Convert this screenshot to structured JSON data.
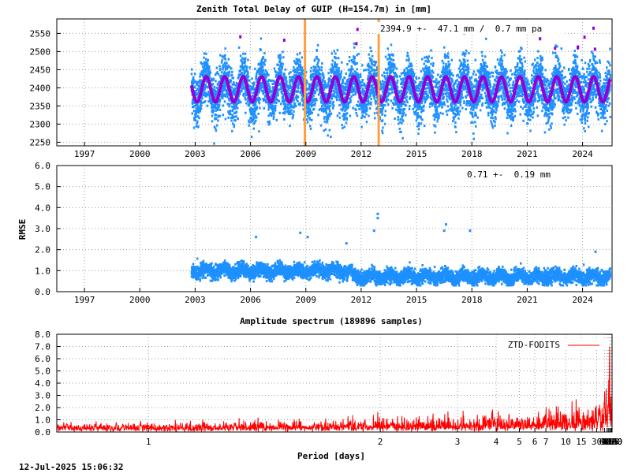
{
  "chart_data": [
    {
      "type": "scatter",
      "title": "Zenith Total Delay of GUIP (H=154.7m) in [mm]",
      "annotation": "2394.9 +-  47.1 mm /  0.7 mm pa",
      "xlim": [
        1995.5,
        2025.6
      ],
      "ylim": [
        2240,
        2590
      ],
      "x_ticks": [
        1997,
        2000,
        2003,
        2006,
        2009,
        2012,
        2015,
        2018,
        2021,
        2024
      ],
      "y_ticks": [
        2250,
        2300,
        2350,
        2400,
        2450,
        2500,
        2550
      ],
      "data_start": 2002.8,
      "data_end": 2025.5,
      "mean": 2394.9,
      "amplitude": 47.1,
      "trend_per_year": 0.7,
      "seasonal_fit_amplitude": 35,
      "vertical_markers": [
        2008.95,
        2012.95
      ],
      "colors": {
        "points": "#1e90ff",
        "fit": "#9400d3",
        "markers": "#ffa040"
      }
    },
    {
      "type": "scatter",
      "ylabel": "RMSE",
      "annotation": "0.71 +-  0.19 mm",
      "xlim": [
        1995.5,
        2025.6
      ],
      "ylim": [
        0,
        6
      ],
      "x_ticks": [
        1997,
        2000,
        2003,
        2006,
        2009,
        2012,
        2015,
        2018,
        2021,
        2024
      ],
      "y_ticks": [
        "0.0",
        "1.0",
        "2.0",
        "3.0",
        "4.0",
        "5.0",
        "6.0"
      ],
      "data_start": 2002.8,
      "data_end": 2025.5,
      "mean": 0.71,
      "std": 0.19,
      "outliers": [
        [
          2012.9,
          3.7
        ],
        [
          2012.9,
          3.5
        ],
        [
          2012.7,
          2.9
        ],
        [
          2016.6,
          3.2
        ],
        [
          2016.5,
          2.9
        ],
        [
          2017.9,
          2.9
        ],
        [
          2008.7,
          2.8
        ],
        [
          2009.1,
          2.6
        ],
        [
          2011.2,
          2.3
        ],
        [
          2024.7,
          1.9
        ],
        [
          2006.3,
          2.6
        ]
      ],
      "colors": {
        "points": "#1e90ff"
      }
    },
    {
      "type": "line",
      "title": "Amplitude spectrum (189896 samples)",
      "xlabel": "Period [days]",
      "x_scale": "reciprocal",
      "legend": "ZTD-FODITS",
      "legend_position": "top-right",
      "ylim": [
        0,
        8
      ],
      "y_ticks": [
        "0.0",
        "1.0",
        "2.0",
        "3.0",
        "4.0",
        "5.0",
        "6.0",
        "7.0",
        "8.0"
      ],
      "x_tick_labels": [
        1,
        2,
        3,
        4,
        5,
        6,
        7,
        10,
        15,
        30,
        61,
        91,
        122,
        183,
        365,
        730,
        2190,
        4380,
        8760
      ],
      "x_grid_periods": [
        1,
        2,
        3,
        4,
        5,
        6,
        7,
        10,
        15,
        30,
        61,
        91,
        122,
        183,
        365,
        730,
        2190,
        4380
      ],
      "period_range": [
        0.835,
        8760
      ],
      "peaks": [
        [
          183,
          7.0
        ],
        [
          365,
          2.9
        ],
        [
          730,
          1.8
        ],
        [
          2190,
          3.0
        ],
        [
          4380,
          2.3
        ],
        [
          8760,
          1.3
        ]
      ],
      "colors": {
        "line": "#ff0000"
      }
    }
  ],
  "footer": {
    "timestamp": "12-Jul-2025 15:06:32"
  }
}
